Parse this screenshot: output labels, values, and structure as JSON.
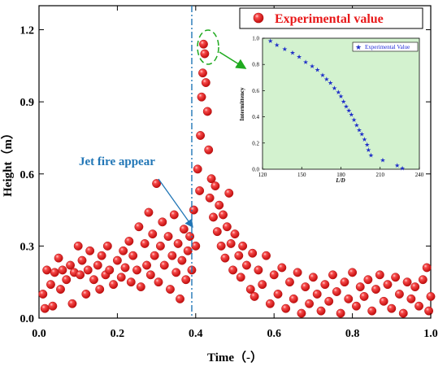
{
  "colors": {
    "point": "#f02020",
    "point_highlight": "#ffb0b0",
    "annotation": "#2176b6",
    "inset_bg": "#d3f2cf",
    "inset_marker": "#2030c8",
    "ellipse": "#1faa1f",
    "arrow_green": "#1faa1f"
  },
  "chart_data": [
    {
      "type": "scatter",
      "title": "",
      "xlabel": "Time（-）",
      "ylabel": "Height（m）",
      "xlim": [
        0.0,
        1.0
      ],
      "ylim": [
        0.0,
        1.3
      ],
      "xticks": [
        "0.0",
        "0.2",
        "0.4",
        "0.6",
        "0.8",
        "1.0"
      ],
      "yticks": [
        "0.0",
        "0.3",
        "0.6",
        "0.9",
        "1.2"
      ],
      "legend": {
        "position": "top-right",
        "label": "Experimental value"
      },
      "annotation": {
        "text": "Jet fire appear",
        "at": [
          0.385,
          0.33
        ],
        "vline_x": 0.39
      },
      "series": [
        {
          "name": "Experimental value",
          "points": [
            [
              0.01,
              0.1
            ],
            [
              0.015,
              0.04
            ],
            [
              0.02,
              0.2
            ],
            [
              0.03,
              0.14
            ],
            [
              0.035,
              0.05
            ],
            [
              0.04,
              0.19
            ],
            [
              0.05,
              0.25
            ],
            [
              0.055,
              0.12
            ],
            [
              0.06,
              0.2
            ],
            [
              0.07,
              0.16
            ],
            [
              0.08,
              0.22
            ],
            [
              0.085,
              0.06
            ],
            [
              0.09,
              0.19
            ],
            [
              0.1,
              0.3
            ],
            [
              0.105,
              0.18
            ],
            [
              0.11,
              0.24
            ],
            [
              0.12,
              0.1
            ],
            [
              0.125,
              0.2
            ],
            [
              0.13,
              0.28
            ],
            [
              0.14,
              0.16
            ],
            [
              0.15,
              0.22
            ],
            [
              0.155,
              0.12
            ],
            [
              0.16,
              0.26
            ],
            [
              0.17,
              0.18
            ],
            [
              0.175,
              0.3
            ],
            [
              0.18,
              0.2
            ],
            [
              0.19,
              0.14
            ],
            [
              0.2,
              0.24
            ],
            [
              0.21,
              0.17
            ],
            [
              0.215,
              0.28
            ],
            [
              0.22,
              0.21
            ],
            [
              0.23,
              0.32
            ],
            [
              0.235,
              0.15
            ],
            [
              0.24,
              0.26
            ],
            [
              0.25,
              0.2
            ],
            [
              0.255,
              0.38
            ],
            [
              0.26,
              0.13
            ],
            [
              0.27,
              0.31
            ],
            [
              0.275,
              0.22
            ],
            [
              0.28,
              0.44
            ],
            [
              0.285,
              0.18
            ],
            [
              0.29,
              0.35
            ],
            [
              0.295,
              0.26
            ],
            [
              0.3,
              0.56
            ],
            [
              0.305,
              0.15
            ],
            [
              0.31,
              0.3
            ],
            [
              0.315,
              0.4
            ],
            [
              0.32,
              0.22
            ],
            [
              0.33,
              0.34
            ],
            [
              0.335,
              0.12
            ],
            [
              0.34,
              0.26
            ],
            [
              0.345,
              0.43
            ],
            [
              0.35,
              0.19
            ],
            [
              0.355,
              0.31
            ],
            [
              0.36,
              0.08
            ],
            [
              0.365,
              0.24
            ],
            [
              0.37,
              0.37
            ],
            [
              0.375,
              0.16
            ],
            [
              0.38,
              0.28
            ],
            [
              0.385,
              0.34
            ],
            [
              0.39,
              0.2
            ],
            [
              0.395,
              0.45
            ],
            [
              0.4,
              0.3
            ],
            [
              0.405,
              0.62
            ],
            [
              0.41,
              0.53
            ],
            [
              0.412,
              0.76
            ],
            [
              0.415,
              0.92
            ],
            [
              0.418,
              1.02
            ],
            [
              0.42,
              1.14
            ],
            [
              0.423,
              1.1
            ],
            [
              0.426,
              0.98
            ],
            [
              0.43,
              0.86
            ],
            [
              0.433,
              0.7
            ],
            [
              0.436,
              0.5
            ],
            [
              0.44,
              0.58
            ],
            [
              0.445,
              0.42
            ],
            [
              0.45,
              0.55
            ],
            [
              0.455,
              0.36
            ],
            [
              0.46,
              0.47
            ],
            [
              0.465,
              0.3
            ],
            [
              0.47,
              0.43
            ],
            [
              0.475,
              0.25
            ],
            [
              0.48,
              0.38
            ],
            [
              0.485,
              0.52
            ],
            [
              0.49,
              0.31
            ],
            [
              0.495,
              0.2
            ],
            [
              0.5,
              0.35
            ],
            [
              0.51,
              0.26
            ],
            [
              0.515,
              0.17
            ],
            [
              0.52,
              0.3
            ],
            [
              0.53,
              0.22
            ],
            [
              0.54,
              0.12
            ],
            [
              0.545,
              0.27
            ],
            [
              0.55,
              0.09
            ],
            [
              0.56,
              0.2
            ],
            [
              0.57,
              0.14
            ],
            [
              0.58,
              0.26
            ],
            [
              0.59,
              0.06
            ],
            [
              0.6,
              0.18
            ],
            [
              0.61,
              0.1
            ],
            [
              0.62,
              0.21
            ],
            [
              0.63,
              0.04
            ],
            [
              0.64,
              0.15
            ],
            [
              0.65,
              0.08
            ],
            [
              0.66,
              0.19
            ],
            [
              0.67,
              0.02
            ],
            [
              0.68,
              0.13
            ],
            [
              0.69,
              0.06
            ],
            [
              0.7,
              0.17
            ],
            [
              0.71,
              0.1
            ],
            [
              0.72,
              0.03
            ],
            [
              0.73,
              0.14
            ],
            [
              0.74,
              0.07
            ],
            [
              0.75,
              0.18
            ],
            [
              0.76,
              0.11
            ],
            [
              0.77,
              0.02
            ],
            [
              0.78,
              0.15
            ],
            [
              0.79,
              0.08
            ],
            [
              0.8,
              0.19
            ],
            [
              0.81,
              0.05
            ],
            [
              0.82,
              0.13
            ],
            [
              0.83,
              0.09
            ],
            [
              0.84,
              0.16
            ],
            [
              0.85,
              0.03
            ],
            [
              0.86,
              0.12
            ],
            [
              0.87,
              0.18
            ],
            [
              0.88,
              0.07
            ],
            [
              0.89,
              0.14
            ],
            [
              0.9,
              0.04
            ],
            [
              0.91,
              0.17
            ],
            [
              0.92,
              0.1
            ],
            [
              0.93,
              0.02
            ],
            [
              0.94,
              0.15
            ],
            [
              0.95,
              0.08
            ],
            [
              0.96,
              0.13
            ],
            [
              0.97,
              0.05
            ],
            [
              0.98,
              0.16
            ],
            [
              0.99,
              0.21
            ],
            [
              1.0,
              0.09
            ],
            [
              0.995,
              0.03
            ]
          ]
        }
      ]
    },
    {
      "type": "scatter",
      "title": "",
      "xlabel": "L/D",
      "ylabel": "Intermittency",
      "xlim": [
        120,
        240
      ],
      "ylim": [
        0.0,
        1.0
      ],
      "xticks": [
        "120",
        "150",
        "180",
        "210",
        "240"
      ],
      "yticks": [
        "0.0",
        "0.2",
        "0.4",
        "0.6",
        "0.8",
        "1.0"
      ],
      "legend": {
        "position": "top-right",
        "label": "Experimental Value"
      },
      "series": [
        {
          "name": "Experimental Value",
          "points": [
            [
              126,
              0.98
            ],
            [
              131,
              0.95
            ],
            [
              137,
              0.92
            ],
            [
              143,
              0.89
            ],
            [
              148,
              0.86
            ],
            [
              153,
              0.82
            ],
            [
              158,
              0.79
            ],
            [
              162,
              0.76
            ],
            [
              166,
              0.72
            ],
            [
              169,
              0.69
            ],
            [
              172,
              0.66
            ],
            [
              175,
              0.62
            ],
            [
              178,
              0.59
            ],
            [
              180,
              0.56
            ],
            [
              182,
              0.52
            ],
            [
              184,
              0.48
            ],
            [
              186,
              0.45
            ],
            [
              188,
              0.42
            ],
            [
              190,
              0.38
            ],
            [
              192,
              0.34
            ],
            [
              194,
              0.3
            ],
            [
              196,
              0.27
            ],
            [
              198,
              0.23
            ],
            [
              200,
              0.19
            ],
            [
              201,
              0.15
            ],
            [
              203,
              0.11
            ],
            [
              212,
              0.07
            ],
            [
              223,
              0.03
            ],
            [
              227,
              0.01
            ]
          ]
        }
      ]
    }
  ]
}
